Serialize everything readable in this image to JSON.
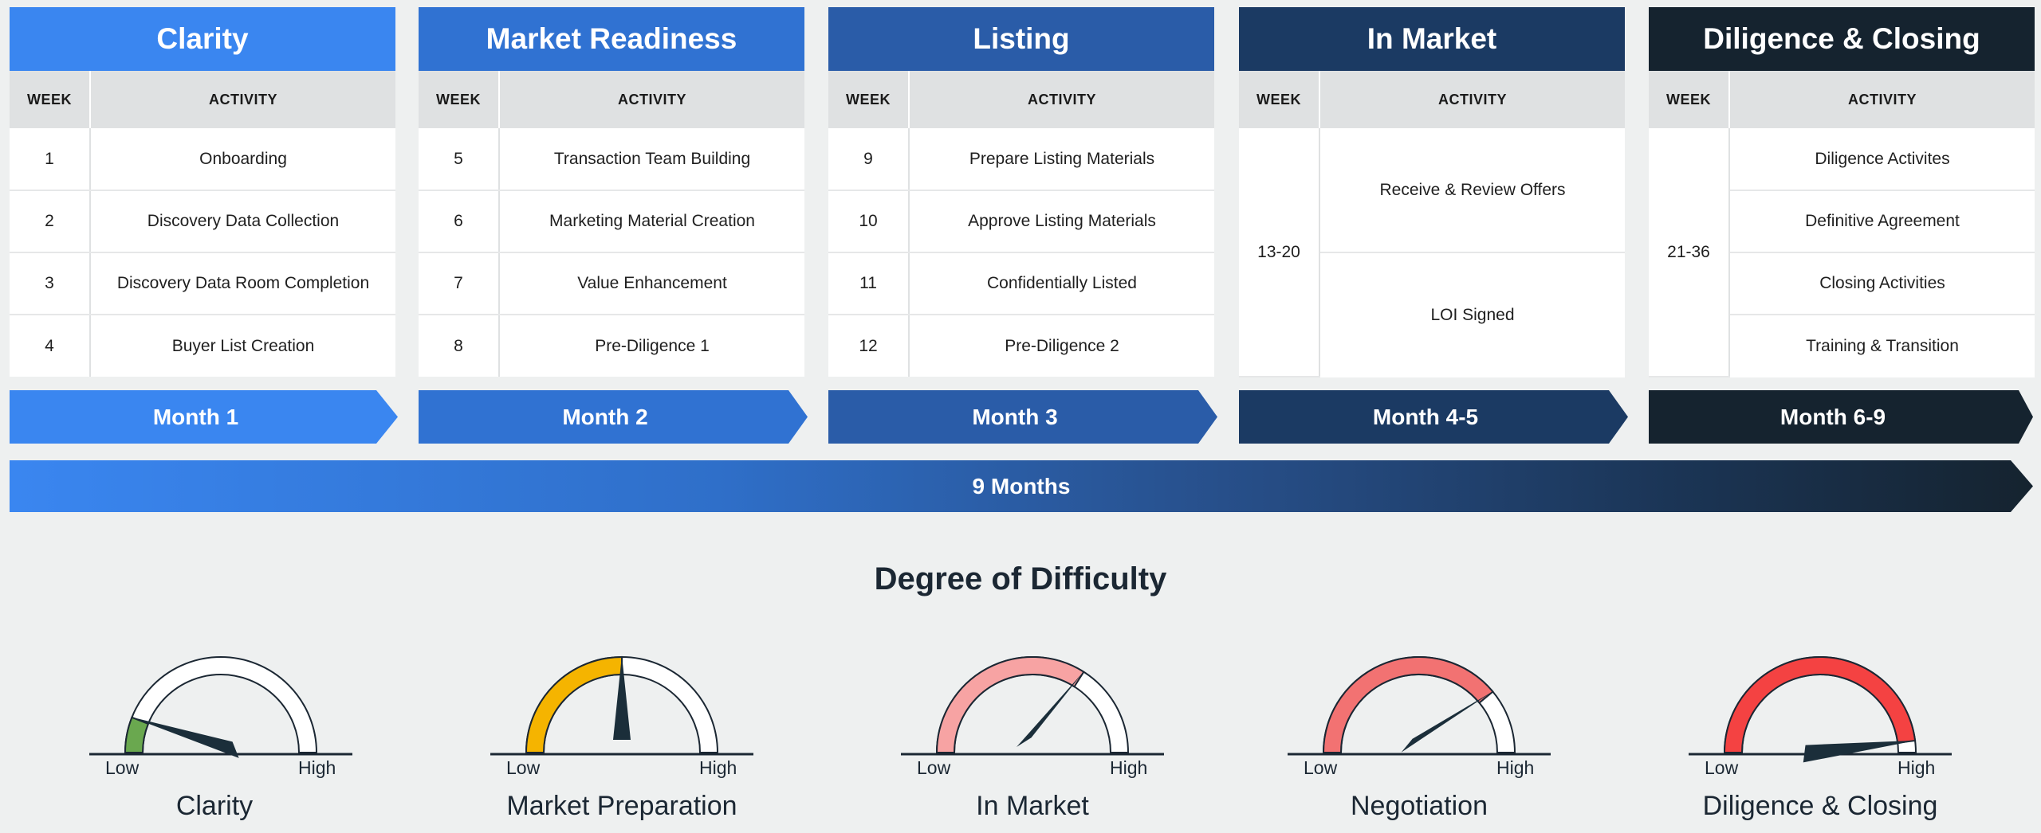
{
  "phases": [
    {
      "title": "Clarity",
      "color": "#3a86f0",
      "week_header": "WEEK",
      "activity_header": "ACTIVITY",
      "rows": [
        {
          "week": "1",
          "activity": "Onboarding"
        },
        {
          "week": "2",
          "activity": "Discovery Data Collection"
        },
        {
          "week": "3",
          "activity": "Discovery Data Room Completion"
        },
        {
          "week": "4",
          "activity": "Buyer List Creation"
        }
      ],
      "month": "Month 1"
    },
    {
      "title": "Market Readiness",
      "color": "#3072d2",
      "week_header": "WEEK",
      "activity_header": "ACTIVITY",
      "rows": [
        {
          "week": "5",
          "activity": "Transaction Team Building"
        },
        {
          "week": "6",
          "activity": "Marketing Material Creation"
        },
        {
          "week": "7",
          "activity": "Value Enhancement"
        },
        {
          "week": "8",
          "activity": "Pre-Diligence 1"
        }
      ],
      "month": "Month 2"
    },
    {
      "title": "Listing",
      "color": "#2a5ca8",
      "week_header": "WEEK",
      "activity_header": "ACTIVITY",
      "rows": [
        {
          "week": "9",
          "activity": "Prepare Listing Materials"
        },
        {
          "week": "10",
          "activity": "Approve Listing Materials"
        },
        {
          "week": "11",
          "activity": "Confidentially Listed"
        },
        {
          "week": "12",
          "activity": "Pre-Diligence 2"
        }
      ],
      "month": "Month 3"
    },
    {
      "title": "In Market",
      "color": "#1b3a63",
      "week_header": "WEEK",
      "activity_header": "ACTIVITY",
      "week_span": "13-20",
      "activities": [
        "Receive & Review Offers",
        "LOI Signed"
      ],
      "month": "Month 4-5"
    },
    {
      "title": "Diligence & Closing",
      "color": "#15232f",
      "week_header": "WEEK",
      "activity_header": "ACTIVITY",
      "week_span": "21-36",
      "activities": [
        "Diligence Activites",
        "Definitive Agreement",
        "Closing Activities",
        "Training & Transition"
      ],
      "month": "Month 6-9"
    }
  ],
  "total_duration": "9 Months",
  "difficulty": {
    "title": "Degree of Difficulty",
    "low_label": "Low",
    "high_label": "High",
    "gauges": [
      {
        "name": "Clarity",
        "level": 0.12,
        "fill_color": "#6aa84f"
      },
      {
        "name": "Market Preparation",
        "level": 0.5,
        "fill_color": "#f5b400"
      },
      {
        "name": "In Market",
        "level": 0.68,
        "fill_color": "#f7a3a3"
      },
      {
        "name": "Negotiation",
        "level": 0.78,
        "fill_color": "#f27272"
      },
      {
        "name": "Diligence & Closing",
        "level": 0.96,
        "fill_color": "#f44242"
      }
    ]
  }
}
